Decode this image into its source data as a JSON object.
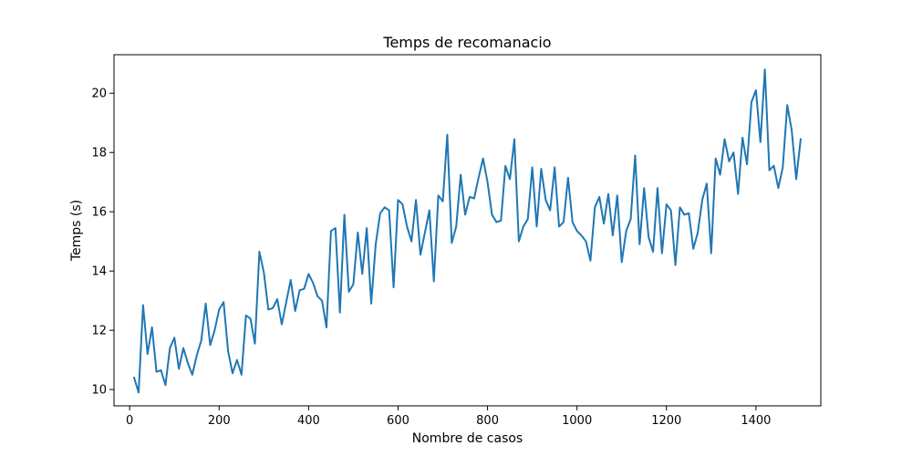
{
  "chart_data": {
    "type": "line",
    "title": "Temps de recomanacio",
    "xlabel": "Nombre de casos",
    "ylabel": "Temps (s)",
    "xlim": [
      -35,
      1545
    ],
    "ylim": [
      9.45,
      21.3
    ],
    "xticks": [
      0,
      200,
      400,
      600,
      800,
      1000,
      1200,
      1400
    ],
    "yticks": [
      10,
      12,
      14,
      16,
      18,
      20
    ],
    "grid": false,
    "line_color": "#1f77b4",
    "series": [
      {
        "x": [
          10,
          20,
          30,
          40,
          50,
          60,
          70,
          80,
          90,
          100,
          110,
          120,
          130,
          140,
          150,
          160,
          170,
          180,
          190,
          200,
          210,
          220,
          230,
          240,
          250,
          260,
          270,
          280,
          290,
          300,
          310,
          320,
          330,
          340,
          350,
          360,
          370,
          380,
          390,
          400,
          410,
          420,
          430,
          440,
          450,
          460,
          470,
          480,
          490,
          500,
          510,
          520,
          530,
          540,
          550,
          560,
          570,
          580,
          590,
          600,
          610,
          620,
          630,
          640,
          650,
          660,
          670,
          680,
          690,
          700,
          710,
          720,
          730,
          740,
          750,
          760,
          770,
          780,
          790,
          800,
          810,
          820,
          830,
          840,
          850,
          860,
          870,
          880,
          890,
          900,
          910,
          920,
          930,
          940,
          950,
          960,
          970,
          980,
          990,
          1000,
          1010,
          1020,
          1030,
          1040,
          1050,
          1060,
          1070,
          1080,
          1090,
          1100,
          1110,
          1120,
          1130,
          1140,
          1150,
          1160,
          1170,
          1180,
          1190,
          1200,
          1210,
          1220,
          1230,
          1240,
          1250,
          1260,
          1270,
          1280,
          1290,
          1300,
          1310,
          1320,
          1330,
          1340,
          1350,
          1360,
          1370,
          1380,
          1390,
          1400,
          1410,
          1420,
          1430,
          1440,
          1450,
          1460,
          1470,
          1480,
          1490,
          1500
        ],
        "values": [
          10.4,
          9.9,
          12.85,
          11.2,
          12.1,
          10.6,
          10.65,
          10.15,
          11.4,
          11.75,
          10.7,
          11.4,
          10.9,
          10.5,
          11.15,
          11.65,
          12.9,
          11.5,
          12.0,
          12.7,
          12.95,
          11.3,
          10.55,
          11.0,
          10.5,
          12.5,
          12.4,
          11.55,
          14.65,
          13.95,
          12.7,
          12.75,
          13.05,
          12.2,
          12.95,
          13.7,
          12.65,
          13.35,
          13.4,
          13.9,
          13.6,
          13.15,
          13.0,
          12.1,
          15.35,
          15.45,
          12.6,
          15.9,
          13.3,
          13.55,
          15.3,
          13.9,
          15.45,
          12.9,
          14.9,
          15.95,
          16.15,
          16.05,
          13.45,
          16.4,
          16.25,
          15.5,
          15.0,
          16.4,
          14.55,
          15.3,
          16.05,
          13.65,
          16.55,
          16.35,
          18.6,
          14.95,
          15.5,
          17.25,
          15.9,
          16.5,
          16.45,
          17.15,
          17.8,
          17.0,
          15.9,
          15.65,
          15.7,
          17.55,
          17.1,
          18.45,
          15.0,
          15.5,
          15.75,
          17.5,
          15.5,
          17.45,
          16.4,
          16.05,
          17.5,
          15.5,
          15.65,
          17.15,
          15.65,
          15.35,
          15.2,
          15.0,
          14.35,
          16.15,
          16.5,
          15.6,
          16.6,
          15.2,
          16.55,
          14.3,
          15.35,
          15.75,
          17.9,
          14.9,
          16.8,
          15.15,
          14.65,
          16.8,
          14.6,
          16.25,
          16.05,
          14.2,
          16.15,
          15.9,
          15.95,
          14.75,
          15.3,
          16.4,
          16.95,
          14.6,
          17.8,
          17.25,
          18.45,
          17.7,
          18.0,
          16.6,
          18.5,
          17.6,
          19.7,
          20.1,
          18.35,
          20.8,
          17.4,
          17.55,
          16.8,
          17.5,
          19.6,
          18.75,
          17.1,
          18.45
        ]
      }
    ]
  }
}
